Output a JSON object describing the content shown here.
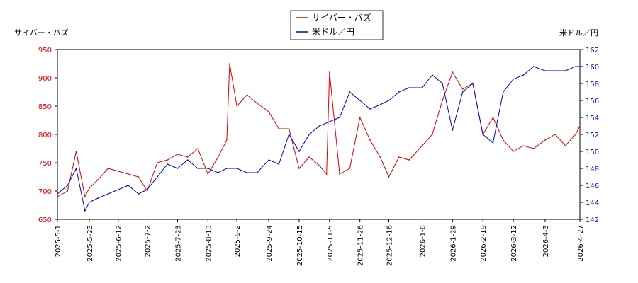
{
  "chart_data": {
    "type": "line",
    "y_left_label": "サイバー・バズ",
    "y_right_label": "米ドル／円",
    "legend": [
      "サイバー・バズ",
      "米ドル／円"
    ],
    "legend_placement": "top-center",
    "grid": false,
    "x_ticks": [
      "2025-5-1",
      "2025-5-23",
      "2025-6-12",
      "2025-7-2",
      "2025-7-23",
      "2025-8-13",
      "2025-9-2",
      "2025-9-24",
      "2025-10-15",
      "2025-11-5",
      "2025-11-26",
      "2025-12-16",
      "2026-1-8",
      "2026-1-29",
      "2026-2-19",
      "2026-3-12",
      "2026-4-3",
      "2026-4-27"
    ],
    "y_left_ticks": [
      650,
      700,
      750,
      800,
      850,
      900,
      950
    ],
    "y_right_ticks": [
      142,
      144,
      146,
      148,
      150,
      152,
      154,
      156,
      158,
      160,
      162
    ],
    "y_left_range": [
      650,
      950
    ],
    "y_right_range": [
      142,
      162
    ],
    "colors": {
      "series1": "#dd0000",
      "series2": "#0000cc"
    },
    "series": [
      {
        "name": "サイバー・バズ",
        "axis": "left",
        "x": [
          "2025-5-1",
          "2025-5-8",
          "2025-5-14",
          "2025-5-20",
          "2025-5-23",
          "2025-5-29",
          "2025-6-5",
          "2025-6-12",
          "2025-6-19",
          "2025-6-26",
          "2025-7-2",
          "2025-7-9",
          "2025-7-16",
          "2025-7-23",
          "2025-7-30",
          "2025-8-6",
          "2025-8-13",
          "2025-8-20",
          "2025-8-26",
          "2025-8-28",
          "2025-9-2",
          "2025-9-9",
          "2025-9-16",
          "2025-9-24",
          "2025-10-1",
          "2025-10-8",
          "2025-10-15",
          "2025-10-22",
          "2025-10-29",
          "2025-11-3",
          "2025-11-5",
          "2025-11-12",
          "2025-11-19",
          "2025-11-26",
          "2025-12-3",
          "2025-12-10",
          "2025-12-16",
          "2025-12-23",
          "2025-12-30",
          "2026-1-8",
          "2026-1-15",
          "2026-1-22",
          "2026-1-29",
          "2026-2-5",
          "2026-2-12",
          "2026-2-19",
          "2026-2-26",
          "2026-3-5",
          "2026-3-12",
          "2026-3-19",
          "2026-3-26",
          "2026-4-3",
          "2026-4-10",
          "2026-4-17",
          "2026-4-24",
          "2026-4-27"
        ],
        "values": [
          690,
          700,
          770,
          690,
          705,
          720,
          740,
          735,
          730,
          725,
          700,
          750,
          755,
          765,
          760,
          775,
          730,
          760,
          790,
          925,
          850,
          870,
          855,
          840,
          810,
          810,
          740,
          760,
          745,
          730,
          910,
          730,
          740,
          830,
          790,
          760,
          725,
          760,
          755,
          780,
          800,
          860,
          910,
          880,
          890,
          800,
          830,
          790,
          770,
          780,
          775,
          790,
          800,
          780,
          800,
          815
        ]
      },
      {
        "name": "米ドル／円",
        "axis": "right",
        "x": [
          "2025-5-1",
          "2025-5-8",
          "2025-5-14",
          "2025-5-20",
          "2025-5-23",
          "2025-5-29",
          "2025-6-5",
          "2025-6-12",
          "2025-6-19",
          "2025-6-26",
          "2025-7-2",
          "2025-7-9",
          "2025-7-16",
          "2025-7-23",
          "2025-7-30",
          "2025-8-6",
          "2025-8-13",
          "2025-8-20",
          "2025-8-26",
          "2025-9-2",
          "2025-9-9",
          "2025-9-16",
          "2025-9-24",
          "2025-10-1",
          "2025-10-8",
          "2025-10-15",
          "2025-10-22",
          "2025-10-29",
          "2025-11-5",
          "2025-11-12",
          "2025-11-19",
          "2025-11-26",
          "2025-12-3",
          "2025-12-10",
          "2025-12-16",
          "2025-12-23",
          "2025-12-30",
          "2026-1-8",
          "2026-1-15",
          "2026-1-22",
          "2026-1-29",
          "2026-2-5",
          "2026-2-12",
          "2026-2-19",
          "2026-2-26",
          "2026-3-5",
          "2026-3-12",
          "2026-3-19",
          "2026-3-26",
          "2026-4-3",
          "2026-4-10",
          "2026-4-17",
          "2026-4-24",
          "2026-4-27"
        ],
        "values": [
          145,
          146,
          148,
          143,
          144,
          144.5,
          145,
          145.5,
          146,
          145,
          145.5,
          147,
          148.5,
          148,
          149,
          148,
          148,
          147.5,
          148,
          148,
          147.5,
          147.5,
          149,
          148.5,
          152,
          150,
          152,
          153,
          153.5,
          154,
          157,
          156,
          155,
          155.5,
          156,
          157,
          157.5,
          157.5,
          159,
          158,
          152.5,
          157,
          158,
          152,
          151,
          157,
          158.5,
          159,
          160,
          159.5,
          159.5,
          159.5,
          160,
          160
        ]
      }
    ]
  }
}
